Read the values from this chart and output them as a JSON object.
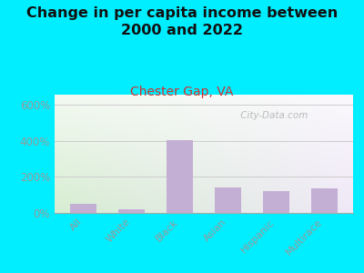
{
  "title": "Change in per capita income between\n2000 and 2022",
  "subtitle": "Chester Gap, VA",
  "categories": [
    "All",
    "White",
    "Black",
    "Asian",
    "Hispanic",
    "Multirace"
  ],
  "values": [
    50,
    20,
    405,
    140,
    120,
    135
  ],
  "bar_color": "#c4afd4",
  "background_outer": "#00eeff",
  "bg_top_left": "#d8ecd0",
  "bg_top_right": "#f0eef8",
  "bg_bottom_left": "#e8f4e0",
  "bg_bottom_right": "#faf8fc",
  "title_fontsize": 11.5,
  "title_color": "#111111",
  "subtitle_fontsize": 10,
  "subtitle_color": "#cc3333",
  "tick_label_color": "#999999",
  "ytick_labels": [
    "0%",
    "200%",
    "400%",
    "600%"
  ],
  "ytick_values": [
    0,
    200,
    400,
    600
  ],
  "ylim": [
    0,
    660
  ],
  "watermark": " City-Data.com",
  "watermark_color": "#bbbbbb",
  "grid_color": "#cccccc"
}
